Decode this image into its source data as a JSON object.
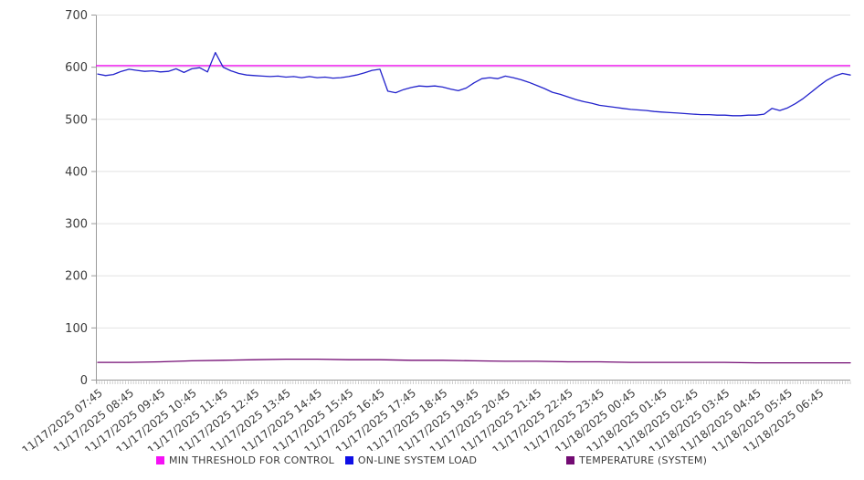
{
  "chart_data": {
    "type": "line",
    "title": "",
    "xlabel": "",
    "ylabel": "",
    "ylim": [
      0,
      700
    ],
    "y_ticks": [
      0,
      100,
      200,
      300,
      400,
      500,
      600,
      700
    ],
    "grid": "horizontal",
    "legend_position": "bottom",
    "x_labels": [
      "11/17/2025 07:45",
      "11/17/2025 08:45",
      "11/17/2025 09:45",
      "11/17/2025 10:45",
      "11/17/2025 11:45",
      "11/17/2025 12:45",
      "11/17/2025 13:45",
      "11/17/2025 14:45",
      "11/17/2025 15:45",
      "11/17/2025 16:45",
      "11/17/2025 17:45",
      "11/17/2025 18:45",
      "11/17/2025 19:45",
      "11/17/2025 20:45",
      "11/17/2025 21:45",
      "11/17/2025 22:45",
      "11/17/2025 23:45",
      "11/18/2025 00:45",
      "11/18/2025 01:45",
      "11/18/2025 02:45",
      "11/18/2025 03:45",
      "11/18/2025 04:45",
      "11/18/2025 05:45",
      "11/18/2025 06:45"
    ],
    "minor_ticks_per_hour": 12,
    "series": [
      {
        "name": "MIN THRESHOLD FOR CONTROL",
        "color": "#ee0bee",
        "kind": "constant",
        "value": 603
      },
      {
        "name": "ON-LINE SYSTEM LOAD",
        "color": "#2323cc",
        "kind": "line",
        "interval_minutes": 15,
        "values": [
          587,
          584,
          586,
          592,
          596,
          594,
          592,
          593,
          591,
          592,
          597,
          590,
          597,
          599,
          591,
          628,
          600,
          593,
          588,
          585,
          584,
          583,
          582,
          583,
          581,
          582,
          580,
          582,
          580,
          581,
          579,
          580,
          582,
          585,
          589,
          594,
          596,
          554,
          551,
          557,
          561,
          564,
          563,
          564,
          562,
          558,
          555,
          560,
          570,
          578,
          580,
          578,
          583,
          580,
          576,
          571,
          565,
          559,
          552,
          548,
          543,
          538,
          534,
          531,
          527,
          525,
          523,
          521,
          519,
          518,
          517,
          515,
          514,
          513,
          512,
          511,
          510,
          509,
          509,
          508,
          508,
          507,
          507,
          508,
          508,
          510,
          521,
          517,
          522,
          530,
          540,
          552,
          564,
          575,
          583,
          588,
          585
        ]
      },
      {
        "name": "TEMPERATURE (SYSTEM)",
        "color": "#730b73",
        "kind": "line",
        "interval_minutes": 60,
        "values": [
          34,
          34,
          35,
          37,
          38,
          39,
          40,
          40,
          39,
          39,
          38,
          38,
          37,
          36,
          36,
          35,
          35,
          34,
          34,
          34,
          34,
          33,
          33,
          33,
          33
        ]
      }
    ]
  },
  "legend": {
    "items": [
      {
        "label": "MIN THRESHOLD FOR CONTROL",
        "color": "#f511f5"
      },
      {
        "label": "ON-LINE SYSTEM LOAD",
        "color": "#0f0fe6"
      },
      {
        "label": "TEMPERATURE (SYSTEM)",
        "color": "#730b73"
      }
    ]
  }
}
